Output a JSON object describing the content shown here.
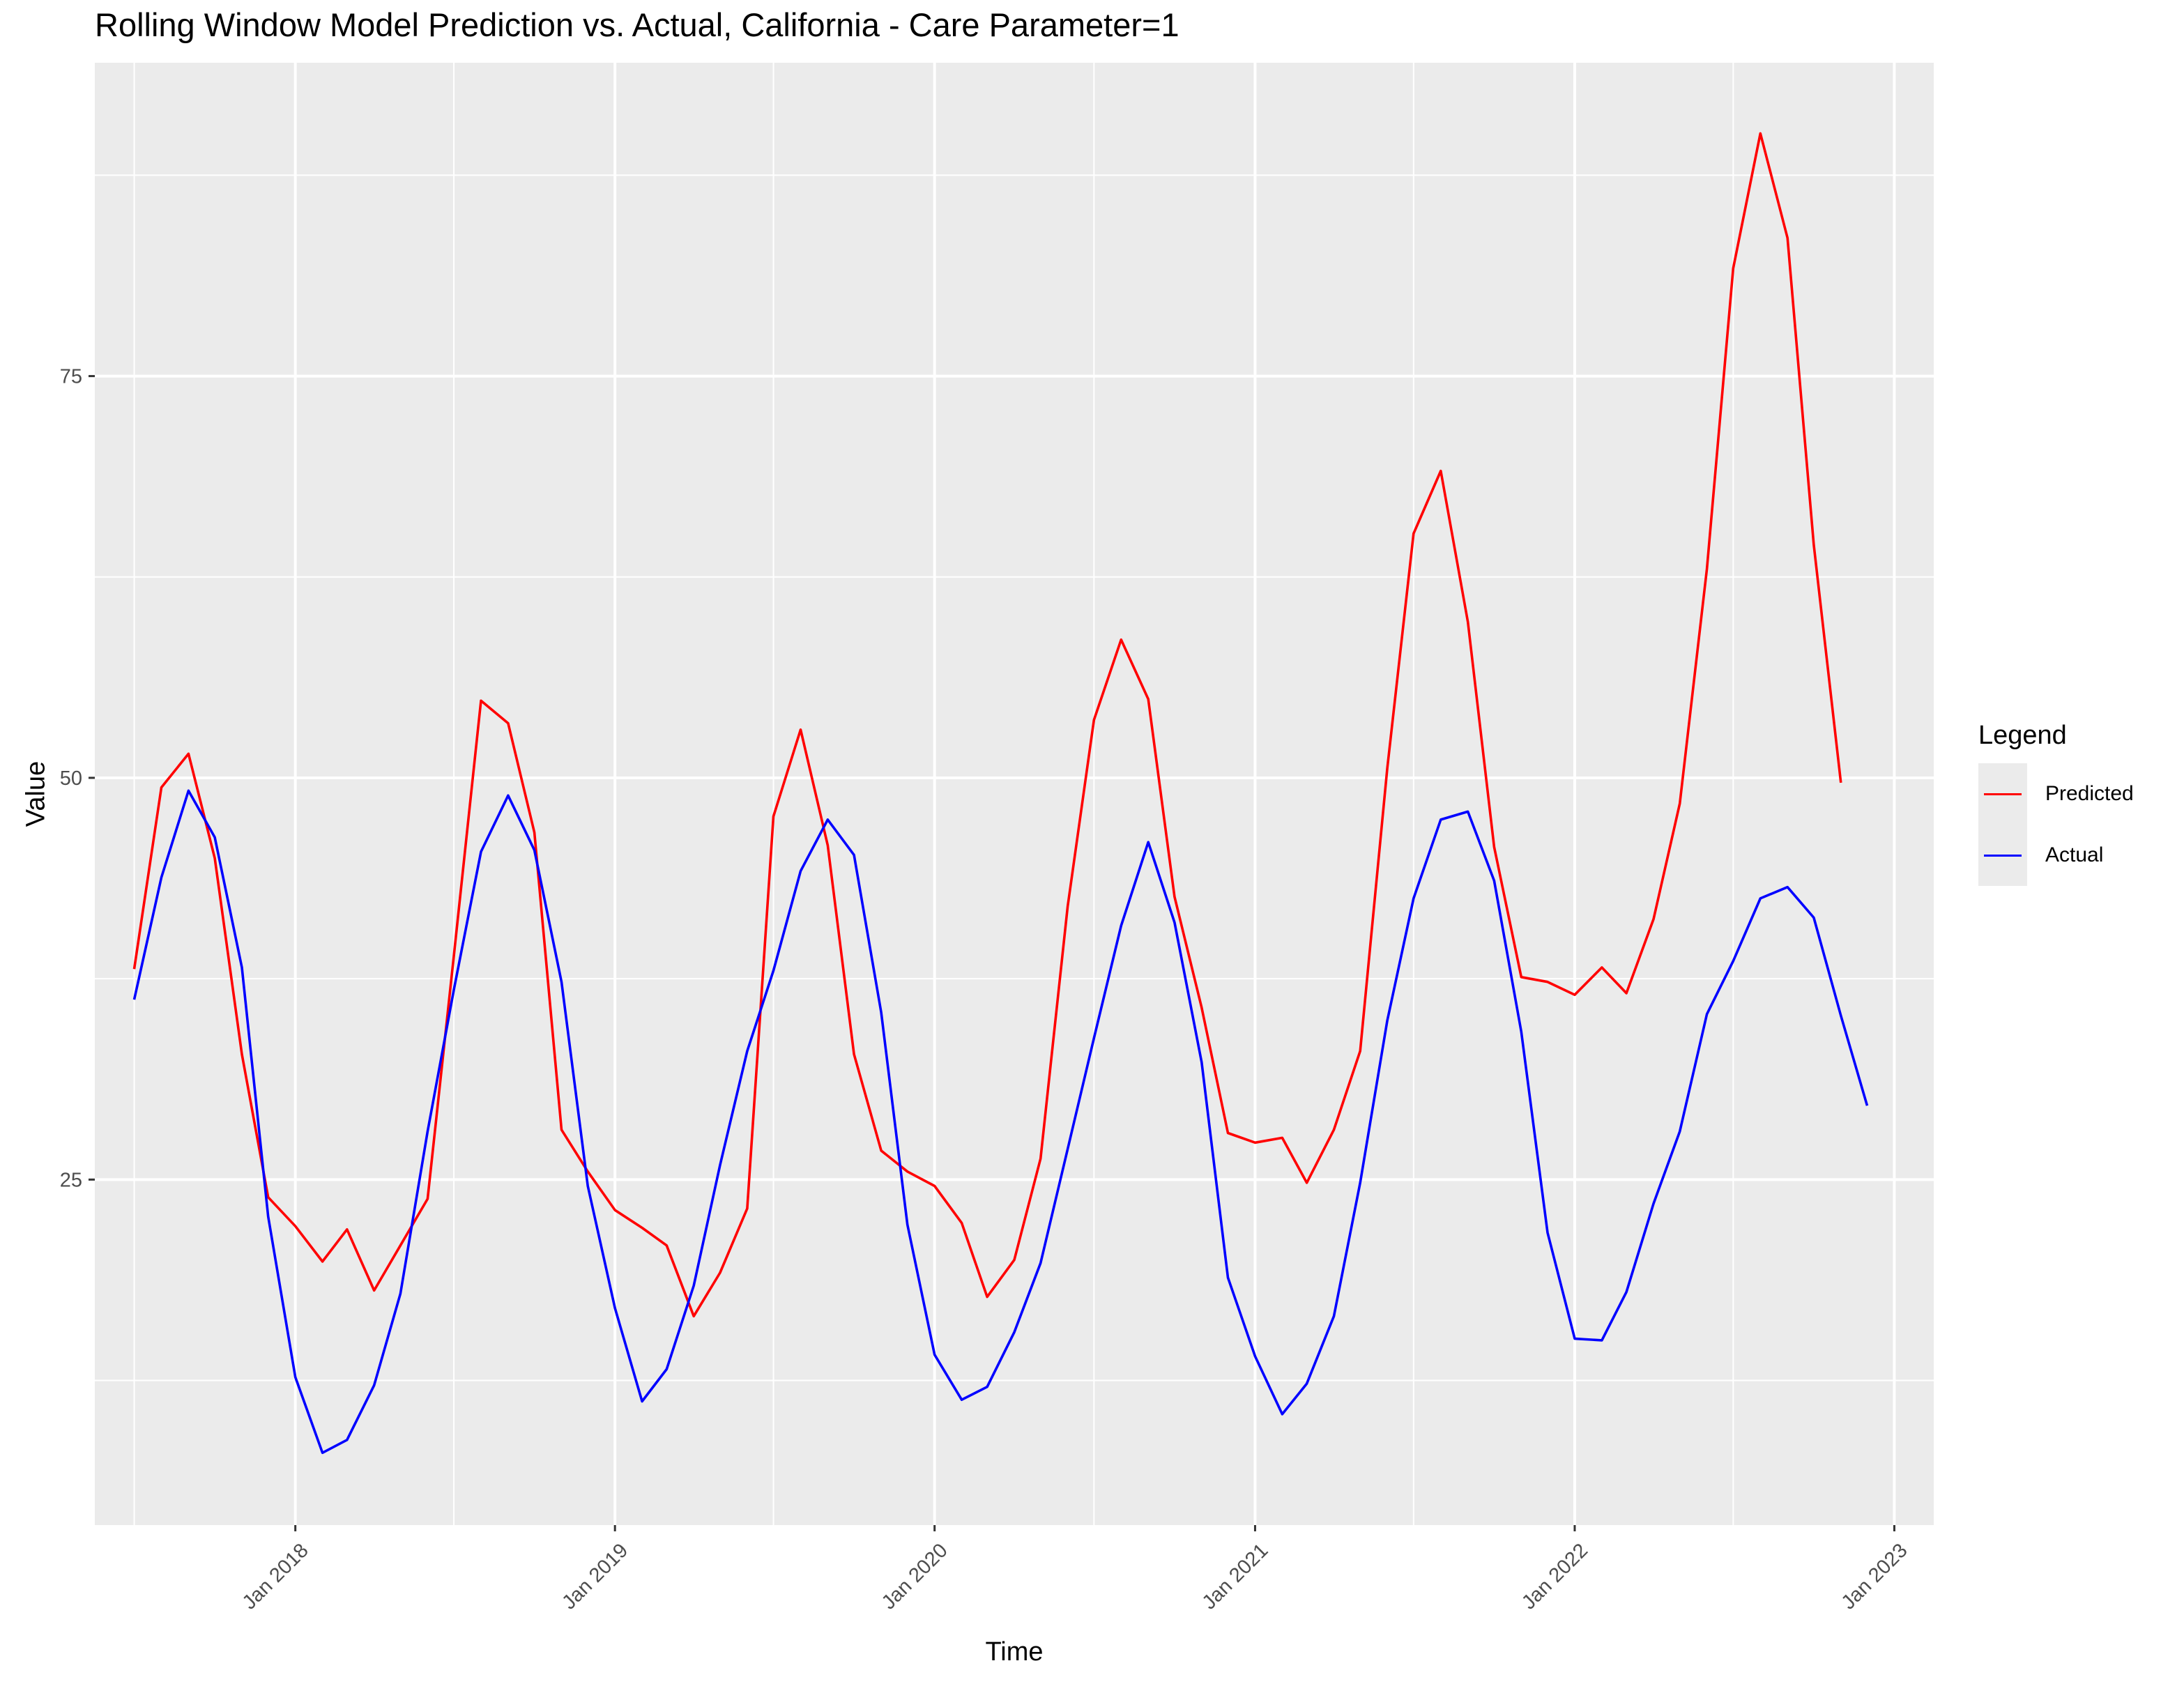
{
  "chart_data": {
    "type": "line",
    "title": "Rolling Window Model Prediction vs. Actual, California - Care Parameter=1",
    "xlabel": "Time",
    "ylabel": "Value",
    "x_tick_labels": [
      "Jan 2018",
      "Jan 2019",
      "Jan 2020",
      "Jan 2021",
      "Jan 2022",
      "Jan 2023"
    ],
    "y_ticks": [
      25,
      50,
      75
    ],
    "ylim": [
      3.5,
      94.5
    ],
    "xlim": [
      "2017-05-17",
      "2023-02-15"
    ],
    "grid": true,
    "legend": {
      "title": "Legend",
      "position": "right"
    },
    "x": [
      "2017-07-01",
      "2017-08-01",
      "2017-09-01",
      "2017-10-01",
      "2017-11-01",
      "2017-12-01",
      "2018-01-01",
      "2018-02-01",
      "2018-03-01",
      "2018-04-01",
      "2018-05-01",
      "2018-06-01",
      "2018-07-01",
      "2018-08-01",
      "2018-09-01",
      "2018-10-01",
      "2018-11-01",
      "2018-12-01",
      "2019-01-01",
      "2019-02-01",
      "2019-03-01",
      "2019-04-01",
      "2019-05-01",
      "2019-06-01",
      "2019-07-01",
      "2019-08-01",
      "2019-09-01",
      "2019-10-01",
      "2019-11-01",
      "2019-12-01",
      "2020-01-01",
      "2020-02-01",
      "2020-03-01",
      "2020-04-01",
      "2020-05-01",
      "2020-06-01",
      "2020-07-01",
      "2020-08-01",
      "2020-09-01",
      "2020-10-01",
      "2020-11-01",
      "2020-12-01",
      "2021-01-01",
      "2021-02-01",
      "2021-03-01",
      "2021-04-01",
      "2021-05-01",
      "2021-06-01",
      "2021-07-01",
      "2021-08-01",
      "2021-09-01",
      "2021-10-01",
      "2021-11-01",
      "2021-12-01",
      "2022-01-01",
      "2022-02-01",
      "2022-03-01",
      "2022-04-01",
      "2022-05-01",
      "2022-06-01",
      "2022-07-01",
      "2022-08-01",
      "2022-09-01",
      "2022-10-01",
      "2022-11-01",
      "2022-12-01"
    ],
    "series": [
      {
        "name": "Predicted",
        "color": "#ff0000",
        "values": [
          38.1,
          49.4,
          51.5,
          45.0,
          32.8,
          23.9,
          22.1,
          19.9,
          21.9,
          18.1,
          20.9,
          23.8,
          38.9,
          54.8,
          53.4,
          46.6,
          28.1,
          25.5,
          23.1,
          22.0,
          20.9,
          16.5,
          19.2,
          23.2,
          47.6,
          53.0,
          45.8,
          32.8,
          26.8,
          25.5,
          24.6,
          22.3,
          17.7,
          20.0,
          26.3,
          42.0,
          53.6,
          58.6,
          54.9,
          42.6,
          35.7,
          27.9,
          27.3,
          27.6,
          24.8,
          28.1,
          33.0,
          50.6,
          65.2,
          69.1,
          59.7,
          45.7,
          37.6,
          37.3,
          36.5,
          38.2,
          36.6,
          41.2,
          48.4,
          63.0,
          81.7,
          90.1,
          83.6,
          64.5,
          49.7,
          null
        ],
        "note": ""
      },
      {
        "name": "Actual",
        "color": "#0000ff",
        "values": [
          36.2,
          43.8,
          49.2,
          46.3,
          38.2,
          22.7,
          12.7,
          8.0,
          8.8,
          12.2,
          17.9,
          28.0,
          36.8,
          45.4,
          48.9,
          45.5,
          37.3,
          24.6,
          17.0,
          11.2,
          13.2,
          18.4,
          25.9,
          33.0,
          38.0,
          44.2,
          47.4,
          45.2,
          35.4,
          22.2,
          14.1,
          11.3,
          12.1,
          15.5,
          19.8,
          26.9,
          33.8,
          40.8,
          46.0,
          41.0,
          32.3,
          18.9,
          14.0,
          10.4,
          12.3,
          16.5,
          24.8,
          34.9,
          42.5,
          47.4,
          47.9,
          43.6,
          34.2,
          21.7,
          15.1,
          15.0,
          18.0,
          23.5,
          28.0,
          35.3,
          38.6,
          42.5,
          43.2,
          41.3,
          35.2,
          29.6
        ],
        "note": ""
      }
    ]
  }
}
